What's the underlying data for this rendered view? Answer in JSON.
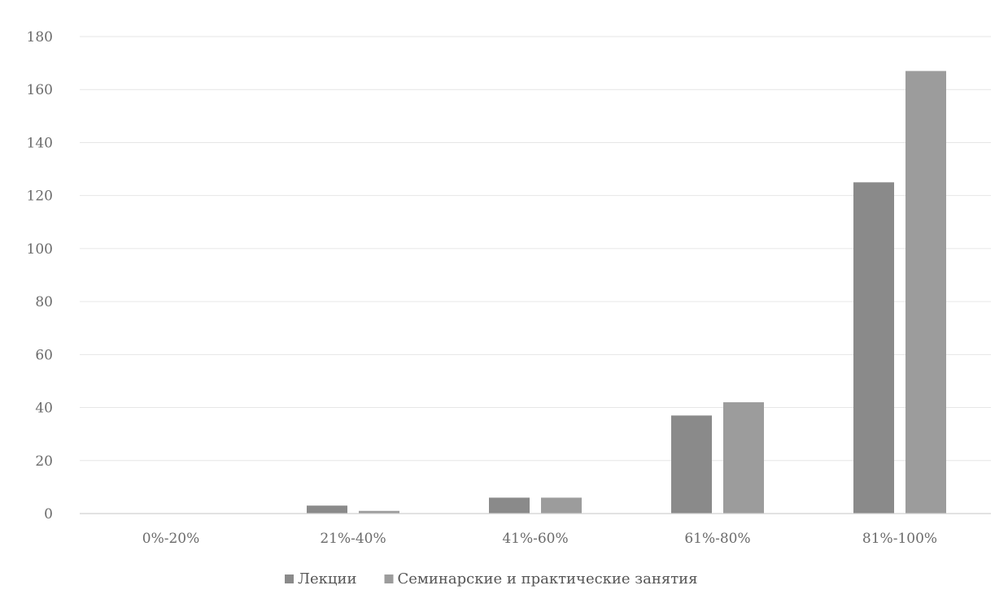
{
  "chart_data": {
    "type": "bar",
    "title": "",
    "xlabel": "",
    "ylabel": "",
    "categories": [
      "0%-20%",
      "21%-40%",
      "41%-60%",
      "61%-80%",
      "81%-100%"
    ],
    "series": [
      {
        "name": "Лекции",
        "values": [
          0,
          3,
          6,
          37,
          125
        ],
        "color": "#8a8a8a"
      },
      {
        "name": "Семинарские и практические занятия",
        "values": [
          0,
          1,
          6,
          42,
          167
        ],
        "color": "#9c9c9c"
      }
    ],
    "yticks": [
      "0",
      "20",
      "40",
      "60",
      "80",
      "100",
      "120",
      "140",
      "160",
      "180"
    ],
    "ylim": [
      0,
      180
    ],
    "grid": true,
    "legend_position": "bottom-center"
  }
}
